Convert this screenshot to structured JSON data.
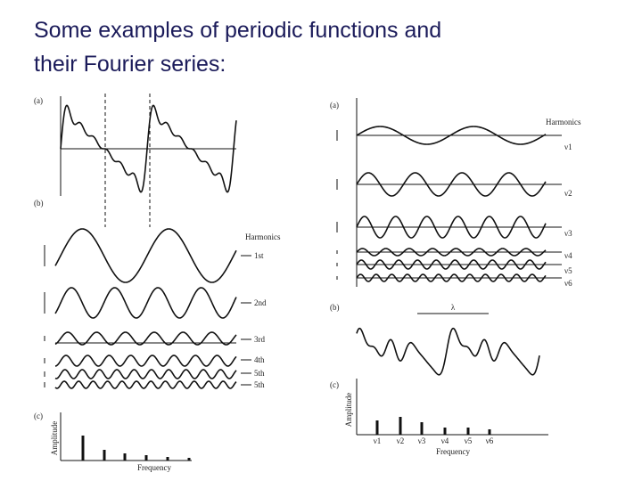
{
  "title": {
    "line1": "Some examples of periodic functions and",
    "line2": "their Fourier series:"
  },
  "left_figure": {
    "panel_a_label": "(a)",
    "panel_b_label": "(b)",
    "harmonics_heading": "Harmonics",
    "harmonics": [
      "1st",
      "2nd",
      "3rd",
      "4th",
      "5th",
      "5th"
    ],
    "panel_c_label": "(c)",
    "y_axis_label": "Amplitude",
    "x_axis_label": "Frequency"
  },
  "right_figure": {
    "panel_a_label": "(a)",
    "harmonics_heading": "Harmonics",
    "harmonics": [
      "ν1",
      "ν2",
      "ν3",
      "ν4",
      "ν5",
      "ν6"
    ],
    "panel_b_label": "(b)",
    "wavelength_label": "λ",
    "panel_c_label": "(c)",
    "y_axis_label": "Amplitude",
    "frequency_labels": [
      "ν1",
      "ν2",
      "ν3",
      "ν4",
      "ν5",
      "ν6"
    ],
    "x_axis_label": "Frequency"
  }
}
